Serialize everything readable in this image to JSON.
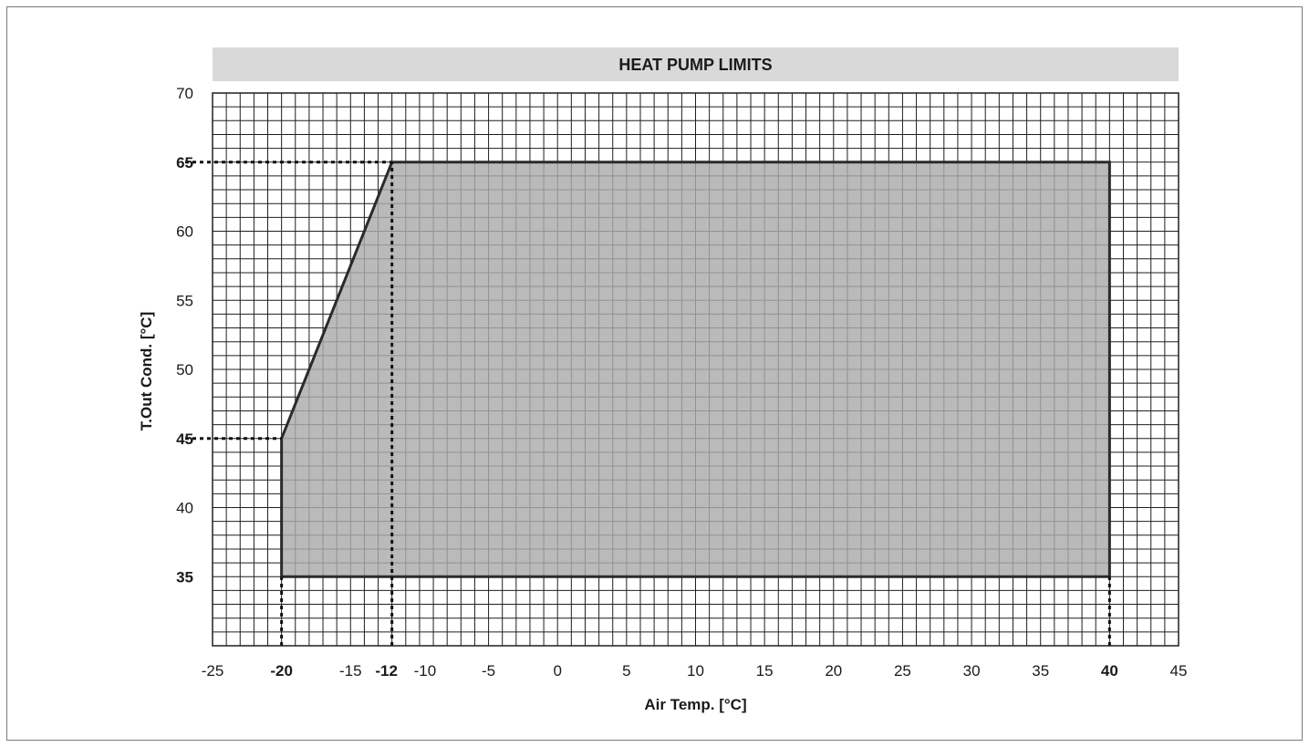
{
  "chart_data": {
    "type": "area",
    "title": "HEAT PUMP LIMITS",
    "xlabel": "Air Temp. [°C]",
    "ylabel": "T.Out Cond. [°C]",
    "xlim": [
      -25,
      45
    ],
    "ylim": [
      30,
      70
    ],
    "x_ticks": [
      -25,
      -20,
      -15,
      -12,
      -10,
      -5,
      0,
      5,
      10,
      15,
      20,
      25,
      30,
      35,
      40,
      45
    ],
    "x_ticks_bold": [
      -20,
      -12,
      40
    ],
    "y_ticks": [
      35,
      40,
      45,
      50,
      55,
      60,
      65,
      70
    ],
    "y_ticks_bold": [
      35,
      45,
      65
    ],
    "grid": true,
    "grid_minor_step": 1,
    "grid_major_step": 5,
    "series": [
      {
        "x": [
          -20,
          -12,
          40,
          40,
          -20
        ],
        "y": [
          45,
          65,
          65,
          35,
          35
        ]
      }
    ],
    "reference_lines": [
      {
        "orientation": "horizontal",
        "y": 65,
        "x_from": -25,
        "x_to": -12
      },
      {
        "orientation": "horizontal",
        "y": 45,
        "x_from": -25,
        "x_to": -20
      },
      {
        "orientation": "vertical",
        "x": -20,
        "y_from": 30,
        "y_to": 35
      },
      {
        "orientation": "vertical",
        "x": -12,
        "y_from": 30,
        "y_to": 65
      },
      {
        "orientation": "vertical",
        "x": 40,
        "y_from": 30,
        "y_to": 35
      }
    ],
    "colors": {
      "fill": "#ababab",
      "outline": "#2a2a2a",
      "grid": "#1f1f1f",
      "title_bar": "#d9d9d9"
    }
  }
}
